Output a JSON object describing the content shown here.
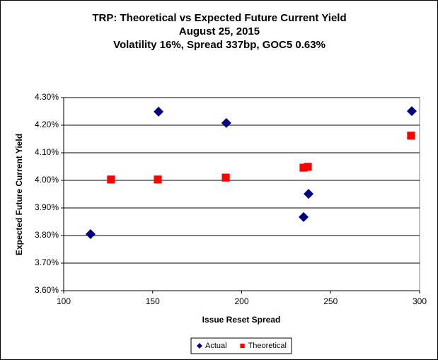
{
  "chart_data": {
    "type": "scatter",
    "title": "TRP: Theoretical vs Expected Future Current Yield",
    "subtitle": [
      "August 25, 2015",
      "Volatility 16%, Spread 337bp, GOC5 0.63%"
    ],
    "x_label": "Issue Reset Spread",
    "y_label": "Expected Future Current Yield",
    "series": [
      {
        "name": "Actual",
        "color": "#000080",
        "marker": "diamond",
        "x": [
          115.1,
          153.3,
          191.4,
          234.8,
          237.6,
          295.6
        ],
        "values": [
          3.805,
          4.249,
          4.208,
          3.867,
          3.951,
          4.251
        ]
      },
      {
        "name": "Theoretical",
        "color": "#ff0000",
        "marker": "square",
        "x": [
          126.6,
          152.9,
          191.1,
          234.8,
          237.2,
          295.2
        ],
        "values": [
          4.003,
          4.003,
          4.01,
          4.046,
          4.049,
          4.162
        ]
      }
    ],
    "xlim": [
      100,
      300
    ],
    "xticks": [
      100,
      150,
      200,
      250,
      300
    ],
    "ylim": [
      3.6,
      4.3
    ],
    "yticks": [
      {
        "value": 3.6,
        "label": "3.60%"
      },
      {
        "value": 3.7,
        "label": "3.70%"
      },
      {
        "value": 3.8,
        "label": "3.80%"
      },
      {
        "value": 3.9,
        "label": "3.90%"
      },
      {
        "value": 4.0,
        "label": "4.00%"
      },
      {
        "value": 4.1,
        "label": "4.10%"
      },
      {
        "value": 4.2,
        "label": "4.20%"
      },
      {
        "value": 4.3,
        "label": "4.30%"
      }
    ],
    "grid": true,
    "legend": "bottom"
  }
}
